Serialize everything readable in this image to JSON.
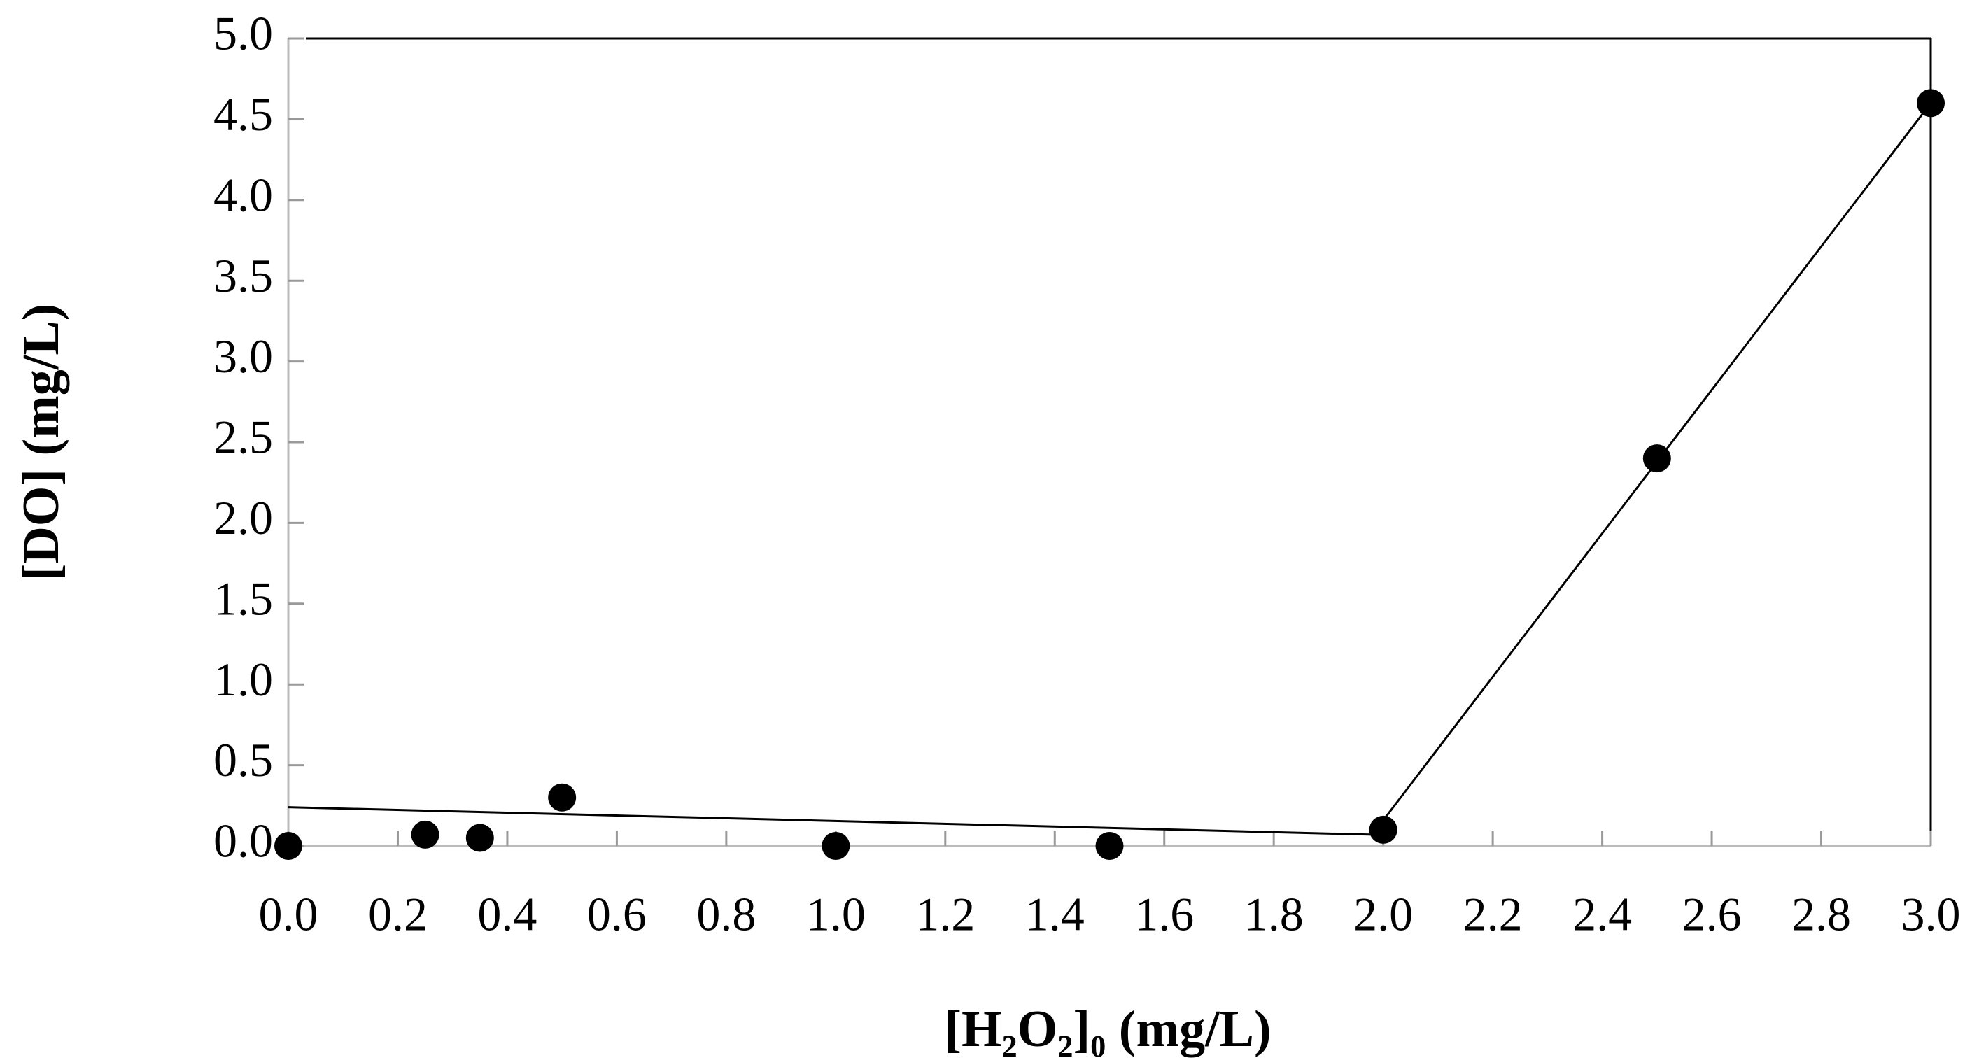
{
  "chart_data": {
    "type": "scatter",
    "x_label": "[H₂O₂]₀ (mg/L)",
    "y_label": "[DO] (mg/L)",
    "xlim": [
      0,
      3
    ],
    "ylim": [
      0,
      5
    ],
    "xticks": [
      {
        "value": 0,
        "label": "0.0"
      },
      0.2,
      0.4,
      0.6,
      0.8,
      {
        "value": 1,
        "label": "1.0"
      },
      1.2,
      1.4,
      1.6,
      1.8,
      {
        "value": 2,
        "label": "2.0"
      },
      2.2,
      2.4,
      2.6,
      2.8,
      {
        "value": 3,
        "label": "3.0"
      }
    ],
    "yticks": [
      {
        "value": 0,
        "label": "0.0"
      },
      0.5,
      {
        "value": 1,
        "label": "1.0"
      },
      1.5,
      {
        "value": 2,
        "label": "2.0"
      },
      2.5,
      {
        "value": 3,
        "label": "3.0"
      },
      3.5,
      {
        "value": 4,
        "label": "4.0"
      },
      4.5,
      {
        "value": 5,
        "label": "5.0"
      }
    ],
    "series": [
      {
        "x": [
          0,
          0.25,
          0.35,
          0.5,
          1.0,
          1.5,
          2.0,
          2.5,
          3.0
        ],
        "values": [
          0,
          0.07,
          0.05,
          0.3,
          0,
          0,
          0.1,
          2.4,
          4.6
        ],
        "color": "#000000"
      }
    ],
    "lines": [
      {
        "x": [
          0,
          1.98
        ],
        "values": [
          0.24,
          0.07
        ],
        "color": "#000000"
      },
      {
        "x": [
          1.98,
          3.0
        ],
        "values": [
          0.07,
          4.6
        ],
        "color": "#000000"
      }
    ]
  }
}
